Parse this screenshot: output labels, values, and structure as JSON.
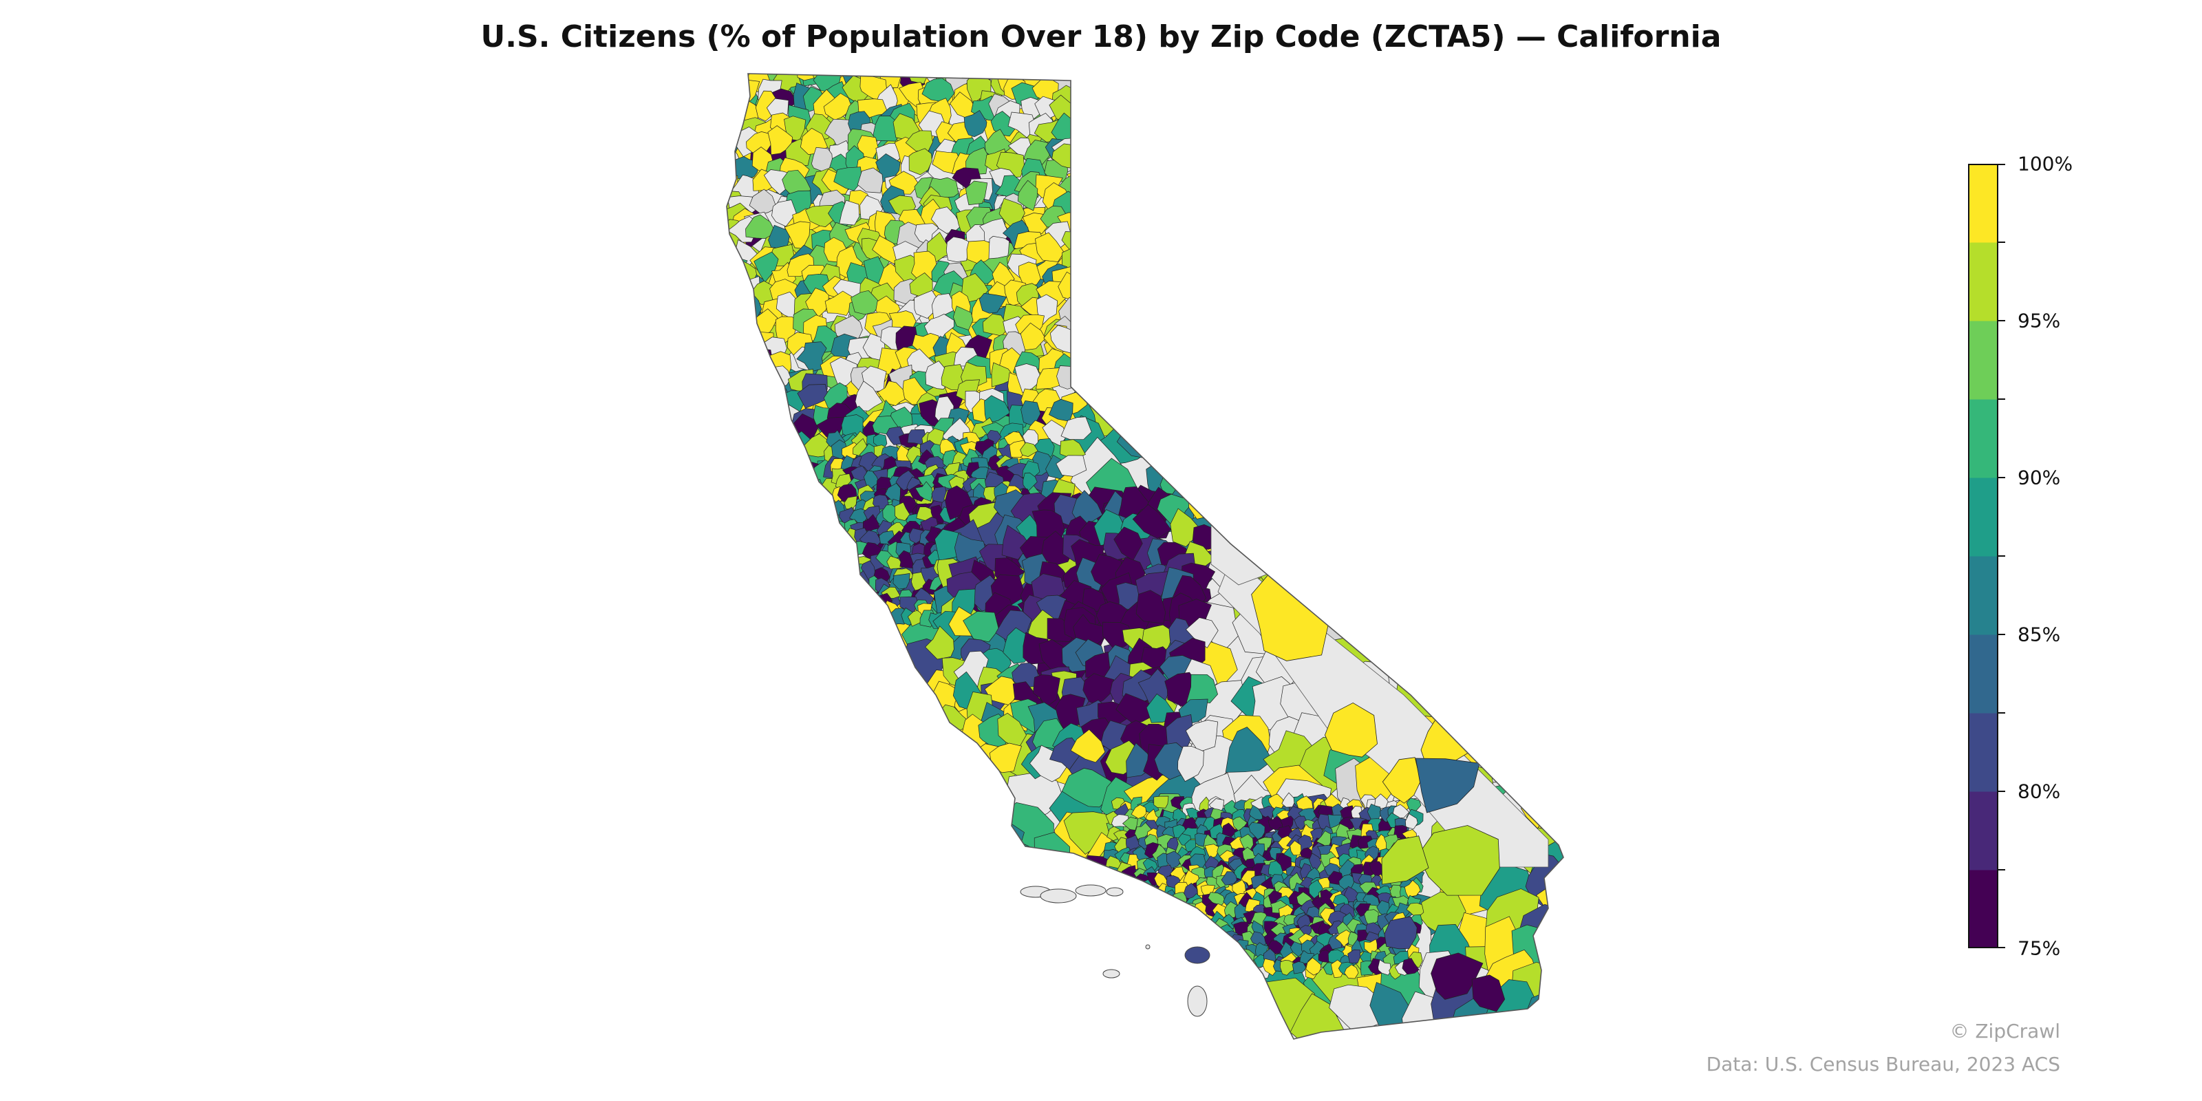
{
  "title": "U.S. Citizens (% of Population Over 18) by Zip Code (ZCTA5) — California",
  "legend": {
    "min": 75,
    "max": 100,
    "step": 2.5,
    "tick_labels": [
      "100%",
      "95%",
      "90%",
      "85%",
      "80%",
      "75%"
    ],
    "colors": [
      "#440154",
      "#482475",
      "#3b528b",
      "#2c728e",
      "#21908d",
      "#27ad81",
      "#5dc863",
      "#a5db36",
      "#fde725"
    ],
    "colors_full": [
      "#440154",
      "#482878",
      "#3e4a89",
      "#31688e",
      "#26828e",
      "#1f9e89",
      "#35b779",
      "#6ece58",
      "#b5de2b",
      "#fde725"
    ]
  },
  "map": {
    "state": "California",
    "no_data_color": "#e8e8e8",
    "no_data_alt_color": "#d6d6d6"
  },
  "credits": {
    "brand": "© ZipCrawl",
    "source": "Data: U.S. Census Bureau, 2023 ACS"
  }
}
